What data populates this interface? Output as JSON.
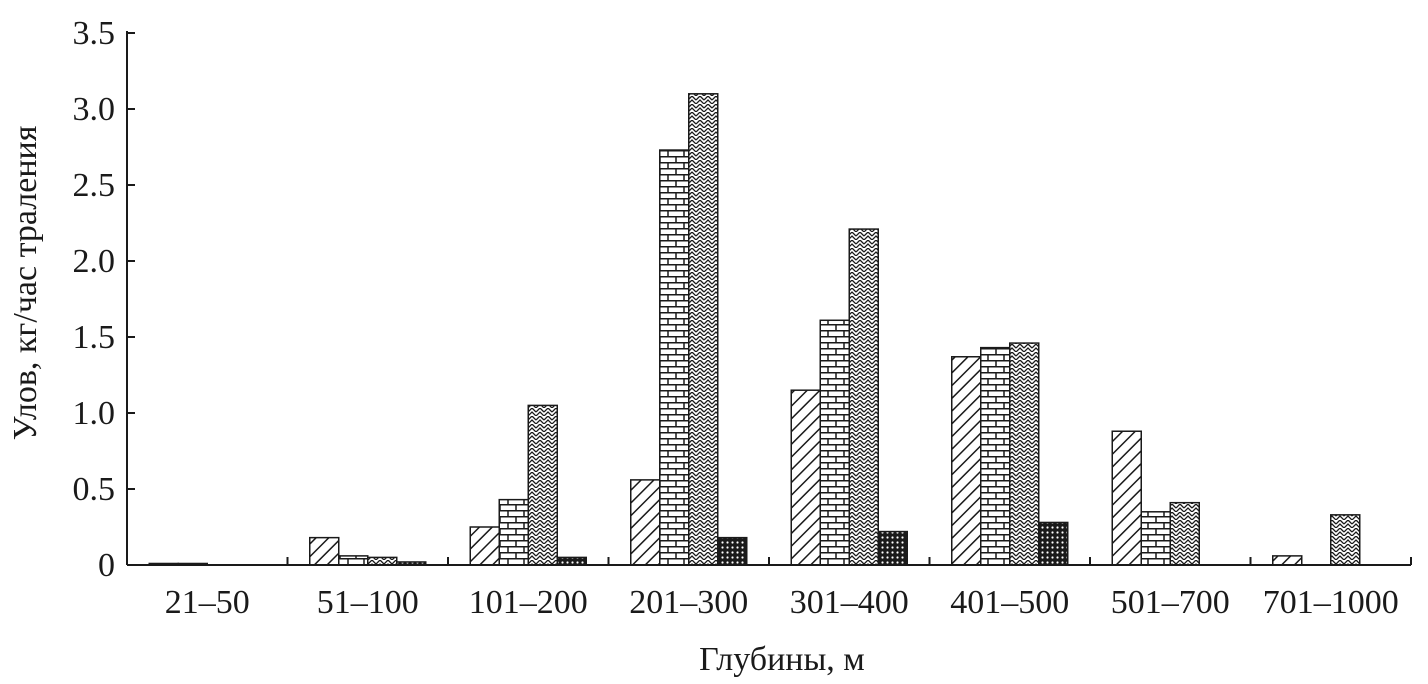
{
  "chart_data": {
    "type": "bar",
    "categories": [
      "21–50",
      "51–100",
      "101–200",
      "201–300",
      "301–400",
      "401–500",
      "501–700",
      "701–1000"
    ],
    "series": [
      {
        "pattern": "diagonal-hatch",
        "values": [
          0.01,
          0.18,
          0.25,
          0.56,
          1.15,
          1.37,
          0.88,
          0.06
        ]
      },
      {
        "pattern": "brick",
        "values": [
          0.01,
          0.06,
          0.43,
          2.73,
          1.61,
          1.43,
          0.35,
          0.0
        ]
      },
      {
        "pattern": "zigzag",
        "values": [
          0.0,
          0.05,
          1.05,
          3.1,
          2.21,
          1.46,
          0.41,
          0.33
        ]
      },
      {
        "pattern": "dotted-dark",
        "values": [
          0.0,
          0.02,
          0.05,
          0.18,
          0.22,
          0.28,
          0.0,
          0.0
        ]
      }
    ],
    "ylim": [
      0,
      3.5
    ],
    "yticks": [
      "0",
      "0.5",
      "1.0",
      "1.5",
      "2.0",
      "2.5",
      "3.0",
      "3.5"
    ],
    "xlabel": "Глубины, м",
    "ylabel": "Улов, кг/час траления",
    "grid": false,
    "colors": {
      "ink": "#1a1a1a",
      "background": "#ffffff"
    }
  }
}
